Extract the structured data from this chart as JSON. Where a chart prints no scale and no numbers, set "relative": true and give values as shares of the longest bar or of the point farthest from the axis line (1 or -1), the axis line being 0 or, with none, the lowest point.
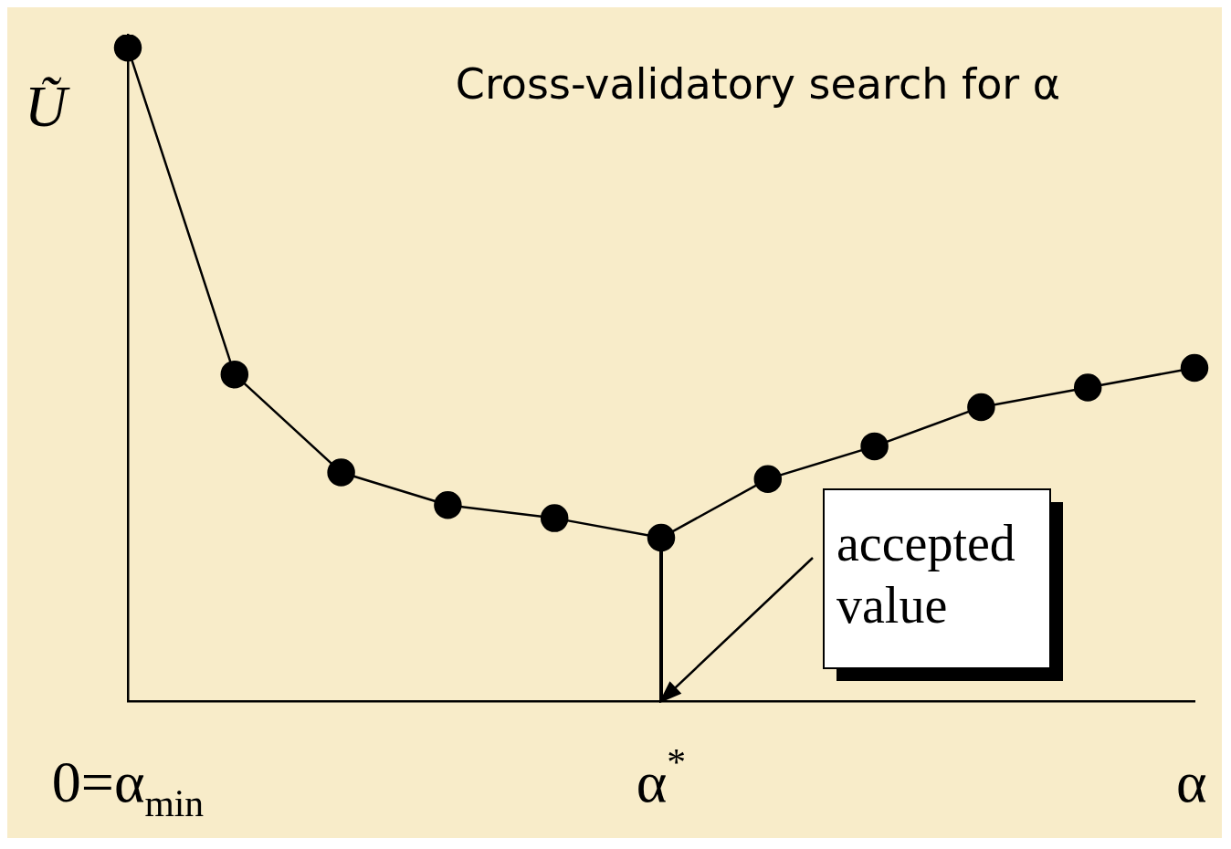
{
  "chart_data": {
    "type": "line",
    "title": "Cross-validatory search for α",
    "xlabel": "α",
    "ylabel": "Ũ",
    "relative": true,
    "categories": [
      "0=α$_{min}$",
      null,
      null,
      null,
      null,
      "α$^{*}$",
      null,
      null,
      null,
      null,
      null
    ],
    "series": [
      {
        "color": "#000000",
        "values": [
          1,
          0.5,
          0.35,
          0.3,
          0.28,
          0.25,
          0.34,
          0.39,
          0.45,
          0.48,
          0.51
        ]
      }
    ],
    "ref_lines": [
      {
        "axis": "x",
        "value": "α$^{*}$",
        "color": "#000000"
      }
    ],
    "annotations": [
      "accepted value"
    ],
    "marker": "circle",
    "line_style": "solid",
    "legend": false,
    "grid": false
  }
}
